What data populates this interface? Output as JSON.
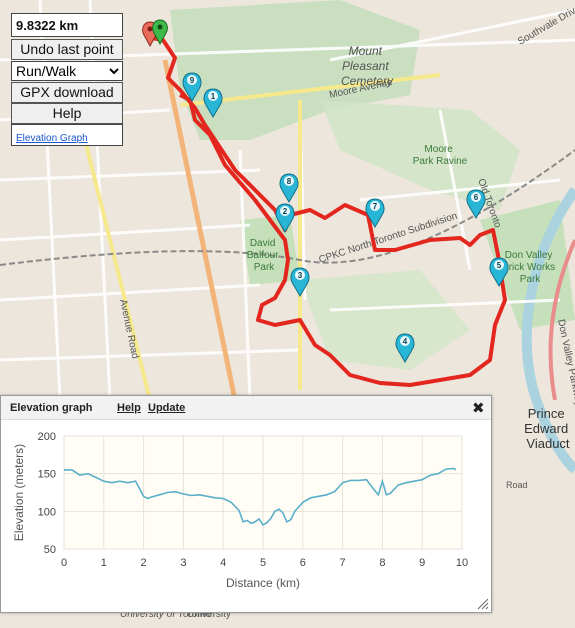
{
  "controls": {
    "distance": "9.8322 km",
    "undo_label": "Undo last point",
    "mode_selected": "Run/Walk",
    "gpx_label": "GPX download",
    "help_label": "Help",
    "elevation_link": "Elevation Graph"
  },
  "map": {
    "labels": {
      "cemetery": [
        "Mount",
        "Pleasant",
        "Cemetery"
      ],
      "moore_avenue": "Moore Avenue",
      "moore_park_ravine": [
        "Moore",
        "Park Ravine"
      ],
      "park": [
        "David",
        "Balfour",
        "Park"
      ],
      "cpkc": "CPKC North Toronto Subdivision",
      "don_valley": [
        "Don Valley",
        "Brick Works",
        "Park"
      ],
      "avenue_road": "Avenue Road",
      "southvale": "Southvale Drive",
      "don_valley_pkwy": "Don Valley Parkway",
      "prince_edward": [
        "Prince",
        "Edward",
        "Viaduct"
      ],
      "university": "University",
      "university_of_toronto": "University of Toronto",
      "old_toronto": "Old Toronto",
      "road": "Road"
    },
    "markers": [
      "1",
      "2",
      "3",
      "4",
      "5",
      "6",
      "7",
      "8",
      "9"
    ],
    "route_color": "#e3271f",
    "marker_color": "#29b6d6"
  },
  "elevation_panel": {
    "title": "Elevation graph",
    "help_label": "Help",
    "update_label": "Update",
    "close_icon": "close-icon"
  },
  "chart_data": {
    "type": "line",
    "xlabel": "Distance (km)",
    "ylabel": "Elevation (meters)",
    "xlim": [
      0,
      10
    ],
    "ylim": [
      50,
      200
    ],
    "xticks": [
      0,
      1,
      2,
      3,
      4,
      5,
      6,
      7,
      8,
      9,
      10
    ],
    "yticks": [
      50,
      100,
      150,
      200
    ],
    "grid": true,
    "line_color": "#5aafc9",
    "x": [
      0,
      0.2,
      0.4,
      0.6,
      0.8,
      1.0,
      1.2,
      1.4,
      1.6,
      1.8,
      2.0,
      2.1,
      2.2,
      2.4,
      2.6,
      2.8,
      3.0,
      3.2,
      3.4,
      3.6,
      3.8,
      4.0,
      4.2,
      4.4,
      4.5,
      4.6,
      4.7,
      4.8,
      4.9,
      5.0,
      5.1,
      5.2,
      5.3,
      5.4,
      5.5,
      5.6,
      5.7,
      5.8,
      6.0,
      6.2,
      6.4,
      6.6,
      6.8,
      7.0,
      7.2,
      7.4,
      7.6,
      7.8,
      7.9,
      8.0,
      8.1,
      8.2,
      8.4,
      8.6,
      8.8,
      9.0,
      9.2,
      9.4,
      9.6,
      9.8,
      9.85
    ],
    "y": [
      155,
      155,
      148,
      150,
      145,
      140,
      138,
      140,
      138,
      140,
      120,
      117,
      119,
      122,
      125,
      126,
      123,
      121,
      122,
      120,
      118,
      117,
      112,
      101,
      86,
      88,
      84,
      86,
      90,
      82,
      85,
      91,
      100,
      103,
      98,
      86,
      89,
      100,
      112,
      118,
      120,
      122,
      126,
      138,
      141,
      141,
      142,
      128,
      122,
      140,
      122,
      124,
      135,
      138,
      140,
      142,
      148,
      150,
      156,
      157,
      155
    ]
  }
}
